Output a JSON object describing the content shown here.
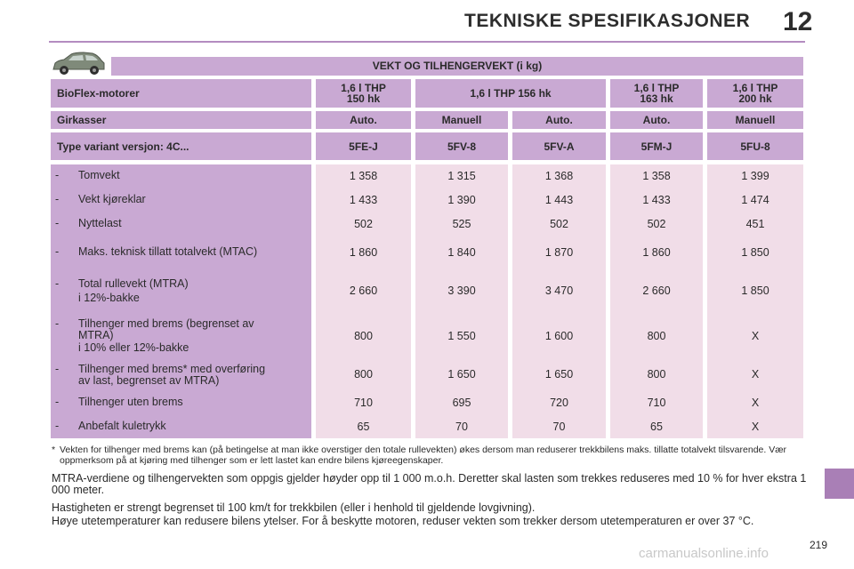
{
  "header": {
    "title": "TEKNISKE SPESIFIKASJONER",
    "chapter": "12"
  },
  "car_icon": "car-icon",
  "table": {
    "title": "VEKT OG TILHENGERVEKT (i kg)",
    "engine_label": "BioFlex-motorer",
    "engines": [
      {
        "line1": "1,6 l THP",
        "line2": "150 hk"
      },
      {
        "line1": "1,6 l THP 156 hk",
        "line2": ""
      },
      {
        "line1": "1,6 l THP",
        "line2": "163 hk"
      },
      {
        "line1": "1,6 l THP",
        "line2": "200 hk"
      }
    ],
    "gearbox_label": "Girkasser",
    "gearboxes": [
      "Auto.",
      "Manuell",
      "Auto.",
      "Auto.",
      "Manuell"
    ],
    "variant_label": "Type variant versjon: 4C...",
    "variants": [
      "5FE-J",
      "5FV-8",
      "5FV-A",
      "5FM-J",
      "5FU-8"
    ],
    "rows": [
      {
        "dash": "-",
        "label": "Tomvekt",
        "values": [
          "1 358",
          "1 315",
          "1 368",
          "1 358",
          "1 399"
        ]
      },
      {
        "dash": "-",
        "label": "Vekt kjøreklar",
        "values": [
          "1 433",
          "1 390",
          "1 443",
          "1 433",
          "1 474"
        ]
      },
      {
        "dash": "-",
        "label": "Nyttelast",
        "values": [
          "502",
          "525",
          "502",
          "502",
          "451"
        ]
      },
      {
        "dash": "-",
        "label": "Maks. teknisk tillatt totalvekt (MTAC)",
        "values": [
          "1 860",
          "1 840",
          "1 870",
          "1 860",
          "1 850"
        ]
      },
      {
        "dash": "-",
        "label": "Total rullevekt (MTRA)",
        "label2": "i 12%-bakke",
        "values": [
          "2 660",
          "3 390",
          "3 470",
          "2 660",
          "1 850"
        ]
      },
      {
        "dash": "-",
        "label": "Tilhenger med brems (begrenset av",
        "label2": "MTRA)",
        "label3": "i 10% eller 12%-bakke",
        "values": [
          "800",
          "1 550",
          "1 600",
          "800",
          "X"
        ]
      },
      {
        "dash": "-",
        "label": "Tilhenger med brems* med overføring",
        "label2": "av last, begrenset av MTRA)",
        "values": [
          "800",
          "1 650",
          "1 650",
          "800",
          "X"
        ]
      },
      {
        "dash": "-",
        "label": "Tilhenger uten brems",
        "values": [
          "710",
          "695",
          "720",
          "710",
          "X"
        ]
      },
      {
        "dash": "-",
        "label": "Anbefalt kuletrykk",
        "values": [
          "65",
          "70",
          "70",
          "65",
          "X"
        ]
      }
    ]
  },
  "footnote": {
    "star": "*",
    "text": "Vekten for tilhenger med brems kan (på betingelse at man ikke overstiger den totale rullevekten) økes dersom man reduserer trekkbilens maks. tillatte totalvekt tilsvarende. Vær oppmerksom på at kjøring med tilhenger som er lett lastet kan endre bilens kjøreegenskaper."
  },
  "paragraphs": [
    "MTRA-verdiene og tilhengervekten som oppgis gjelder høyder opp til 1 000 m.o.h. Deretter skal lasten som trekkes reduseres med 10 % for hver ekstra 1 000 meter.",
    "Hastigheten er strengt begrenset til 100 km/t for trekkbilen (eller i henhold til gjeldende lovgivning).",
    "Høye utetemperaturer kan redusere bilens ytelser. For å beskytte motoren, reduser vekten som trekker dersom utetemperaturen er over 37 °C."
  ],
  "page_number": "219",
  "watermark": "carmanualsonline.info",
  "colors": {
    "header_cell": "#c9a9d3",
    "value_cell": "#f1dde8",
    "rule": "#b48cc0",
    "side_tab": "#a97fb6"
  }
}
